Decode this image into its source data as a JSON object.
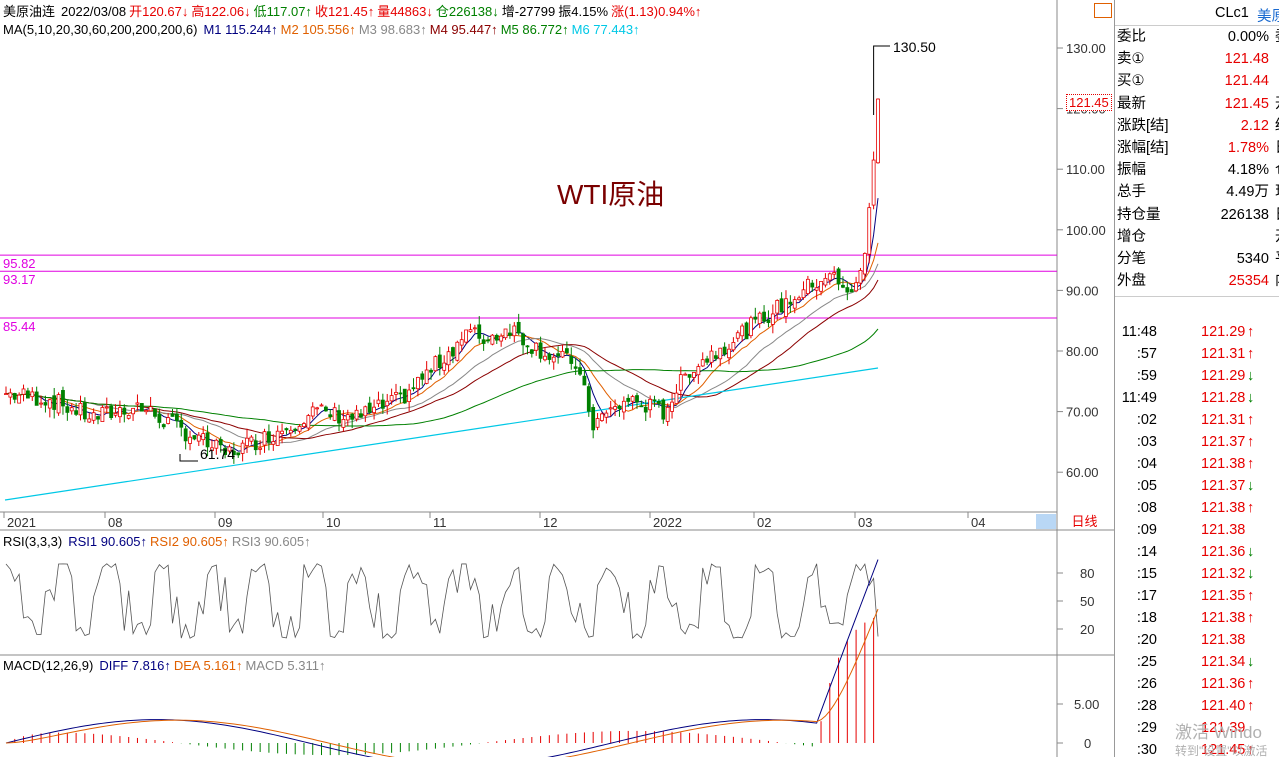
{
  "header": {
    "line1": [
      {
        "text": "美原油连",
        "color": "#000000"
      },
      {
        "text": "2022/03/08",
        "color": "#000000"
      },
      {
        "text": "开120.67↓",
        "color": "#e60000"
      },
      {
        "text": "高122.06↓",
        "color": "#e60000"
      },
      {
        "text": "低117.07↑",
        "color": "#008000"
      },
      {
        "text": "收121.45↑",
        "color": "#e60000"
      },
      {
        "text": "量44863↓",
        "color": "#e60000"
      },
      {
        "text": "仓226138↓",
        "color": "#008000"
      },
      {
        "text": "增-27799",
        "color": "#000000"
      },
      {
        "text": "振4.15%",
        "color": "#000000"
      },
      {
        "text": "涨(1.13)0.94%↑",
        "color": "#e60000"
      }
    ],
    "line2": [
      {
        "text": "MA(5,10,20,30,60,200,200,200,6)",
        "color": "#000000"
      },
      {
        "text": "M1 115.244↑",
        "color": "#000080"
      },
      {
        "text": "M2 105.556↑",
        "color": "#e06000"
      },
      {
        "text": "M3 98.683↑",
        "color": "#888888"
      },
      {
        "text": "M4 95.447↑",
        "color": "#8b0000"
      },
      {
        "text": "M5 86.772↑",
        "color": "#008000"
      },
      {
        "text": "M6 77.443↑",
        "color": "#00c8e6"
      }
    ]
  },
  "main_chart": {
    "annotation_title": "WTI原油",
    "high_label": "130.50",
    "low_label": "61.74",
    "last_price_tag": "121.45",
    "hlines": [
      {
        "value": 95.82,
        "label": "95.82"
      },
      {
        "value": 93.17,
        "label": "93.17"
      },
      {
        "value": 85.44,
        "label": "85.44"
      }
    ],
    "y_axis": [
      "130.00",
      "120.00",
      "110.00",
      "100.00",
      "90.00",
      "80.00",
      "70.00",
      "60.00"
    ],
    "x_axis": [
      "2021",
      "08",
      "09",
      "10",
      "11",
      "12",
      "2022",
      "02",
      "03",
      "04"
    ],
    "period_button": "日线"
  },
  "rsi": {
    "header": [
      {
        "text": "RSI(3,3,3)",
        "color": "#000000"
      },
      {
        "text": "RSI1 90.605↑",
        "color": "#000080"
      },
      {
        "text": "RSI2 90.605↑",
        "color": "#e06000"
      },
      {
        "text": "RSI3 90.605↑",
        "color": "#888888"
      }
    ],
    "y_axis": [
      "80",
      "50",
      "20"
    ]
  },
  "macd": {
    "header": [
      {
        "text": "MACD(12,26,9)",
        "color": "#000000"
      },
      {
        "text": "DIFF 7.816↑",
        "color": "#000080"
      },
      {
        "text": "DEA 5.161↑",
        "color": "#e06000"
      },
      {
        "text": "MACD 5.311↑",
        "color": "#888888"
      }
    ],
    "y_axis": [
      "5.00",
      "0"
    ]
  },
  "quote_panel": {
    "symbol": "CLc1",
    "symbol_name": "美原",
    "rows": [
      {
        "label": "委比",
        "value": "0.00%",
        "color": "#000000",
        "cut": "委"
      },
      {
        "label": "卖①",
        "value": "121.48",
        "color": "#e60000",
        "cut": ""
      },
      {
        "label": "买①",
        "value": "121.44",
        "color": "#e60000",
        "cut": ""
      },
      {
        "label": "最新",
        "value": "121.45",
        "color": "#e60000",
        "cut": "开"
      },
      {
        "label": "涨跌[结]",
        "value": "2.12",
        "color": "#e60000",
        "cut": "结"
      },
      {
        "label": "涨幅[结]",
        "value": "1.78%",
        "color": "#e60000",
        "cut": "日"
      },
      {
        "label": "振幅",
        "value": "4.18%",
        "color": "#000000",
        "cut": "仓"
      },
      {
        "label": "总手",
        "value": "4.49万",
        "color": "#000000",
        "cut": "现"
      },
      {
        "label": "持仓量",
        "value": "226138",
        "color": "#000000",
        "cut": "日"
      },
      {
        "label": "增仓",
        "value": "",
        "color": "#000000",
        "cut": "开"
      },
      {
        "label": "分笔",
        "value": "5340",
        "color": "#000000",
        "cut": "平"
      },
      {
        "label": "外盘",
        "value": "25354",
        "color": "#e60000",
        "cut": "内"
      }
    ],
    "ticks": [
      {
        "time": "11:48",
        "price": "121.29",
        "dir": "↑"
      },
      {
        "time": ":57",
        "price": "121.31",
        "dir": "↑"
      },
      {
        "time": ":59",
        "price": "121.29",
        "dir": "↓"
      },
      {
        "time": "11:49",
        "price": "121.28",
        "dir": "↓"
      },
      {
        "time": ":02",
        "price": "121.31",
        "dir": "↑"
      },
      {
        "time": ":03",
        "price": "121.37",
        "dir": "↑"
      },
      {
        "time": ":04",
        "price": "121.38",
        "dir": "↑"
      },
      {
        "time": ":05",
        "price": "121.37",
        "dir": "↓"
      },
      {
        "time": ":08",
        "price": "121.38",
        "dir": "↑"
      },
      {
        "time": ":09",
        "price": "121.38",
        "dir": ""
      },
      {
        "time": ":14",
        "price": "121.36",
        "dir": "↓"
      },
      {
        "time": ":15",
        "price": "121.32",
        "dir": "↓"
      },
      {
        "time": ":17",
        "price": "121.35",
        "dir": "↑"
      },
      {
        "time": ":18",
        "price": "121.38",
        "dir": "↑"
      },
      {
        "time": ":20",
        "price": "121.38",
        "dir": ""
      },
      {
        "time": ":25",
        "price": "121.34",
        "dir": "↓"
      },
      {
        "time": ":26",
        "price": "121.36",
        "dir": "↑"
      },
      {
        "time": ":28",
        "price": "121.40",
        "dir": "↑"
      },
      {
        "time": ":29",
        "price": "121.39",
        "dir": ""
      },
      {
        "time": ":30",
        "price": "121.45",
        "dir": "↑"
      }
    ],
    "watermark1": "激活 Windo",
    "watermark2": "转到\"设置\"以激活"
  },
  "colors": {
    "up": "#e60000",
    "down": "#008000",
    "m1": "#000080",
    "m2": "#e06000",
    "m3": "#888888",
    "m4": "#8b0000",
    "m5": "#008000",
    "m6": "#00c8e6",
    "hline": "#e000e0",
    "grid": "#c8c8c8"
  }
}
